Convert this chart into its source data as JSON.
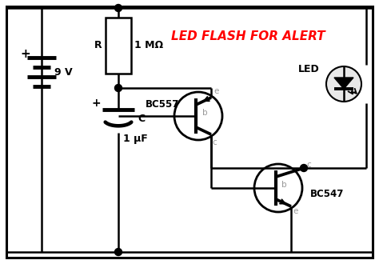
{
  "title": "LED FLASH FOR ALERT",
  "title_color": "#FF0000",
  "bg_color": "#FFFFFF",
  "line_color": "#000000",
  "gray_color": "#999999",
  "fig_width": 4.74,
  "fig_height": 3.3,
  "dpi": 100,
  "components": {
    "battery_label": "9 V",
    "resistor_label": "R",
    "resistor_value": "1 MΩ",
    "cap_label": "C",
    "cap_value": "1 μF",
    "transistor1_label": "BC557",
    "transistor2_label": "BC547",
    "led_label": "LED"
  }
}
